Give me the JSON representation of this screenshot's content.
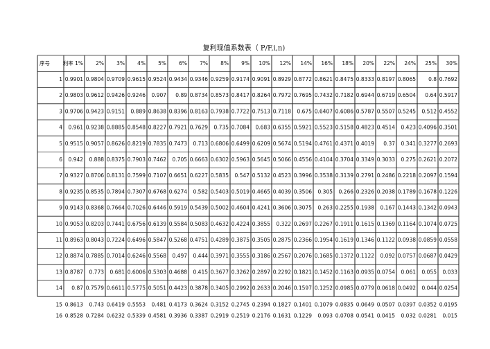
{
  "header": {
    "title": "复利现值系数表（ P/F,i,n)"
  },
  "table": {
    "columns": [
      "序号",
      "利率 1%",
      "2%",
      "3%",
      "4%",
      "5%",
      "6%",
      "7%",
      "8%",
      "9%",
      "10%",
      "12%",
      "14%",
      "16%",
      "18%",
      "20%",
      "22%",
      "24%",
      "25%",
      "30%"
    ],
    "rows": [
      [
        "1",
        "0.9901",
        "0.9804",
        "0.9709",
        "0.9615",
        "0.9524",
        "0.9434",
        "0.9346",
        "0.9259",
        "0.9174",
        "0.9091",
        "0.8929",
        "0.8772",
        "0.8621",
        "0.8475",
        "0.8333",
        "0.8197",
        "0.8065",
        "0.8",
        "0.7692"
      ],
      [
        "2",
        "0.9803",
        "0.9612",
        "0.9426",
        "0.9246",
        "0.907",
        "0.89",
        "0.8734",
        "0.8573",
        "0.8417",
        "0.8264",
        "0.7972",
        "0.7695",
        "0.7432",
        "0.7182",
        "0.6944",
        "0.6719",
        "0.6504",
        "0.64",
        "0.5917"
      ],
      [
        "3",
        "0.9706",
        "0.9423",
        "0.9151",
        "0.889",
        "0.8638",
        "0.8396",
        "0.8163",
        "0.7938",
        "0.7722",
        "0.7513",
        "0.7118",
        "0.675",
        "0.6407",
        "0.6086",
        "0.5787",
        "0.5507",
        "0.5245",
        "0.512",
        "0.4552"
      ],
      [
        "4",
        "0.961",
        "0.9238",
        "0.8885",
        "0.8548",
        "0.8227",
        "0.7921",
        "0.7629",
        "0.735",
        "0.7084",
        "0.683",
        "0.6355",
        "0.5921",
        "0.5523",
        "0.5158",
        "0.4823",
        "0.4514",
        "0.423",
        "0.4096",
        "0.3501"
      ],
      [
        "5",
        "0.9515",
        "0.9057",
        "0.8626",
        "0.8219",
        "0.7835",
        "0.7473",
        "0.713",
        "0.6806",
        "0.6499",
        "0.6209",
        "0.5674",
        "0.5194",
        "0.4761",
        "0.4371",
        "0.4019",
        "0.37",
        "0.341",
        "0.3277",
        "0.2693"
      ],
      [
        "6",
        "0.942",
        "0.888",
        "0.8375",
        "0.7903",
        "0.7462",
        "0.705",
        "0.6663",
        "0.6302",
        "0.5963",
        "0.5645",
        "0.5066",
        "0.4556",
        "0.4104",
        "0.3704",
        "0.3349",
        "0.3033",
        "0.275",
        "0.2621",
        "0.2072"
      ],
      [
        "7",
        "0.9327",
        "0.8706",
        "0.8131",
        "0.7599",
        "0.7107",
        "0.6651",
        "0.6227",
        "0.5835",
        "0.547",
        "0.5132",
        "0.4523",
        "0.3996",
        "0.3538",
        "0.3139",
        "0.2791",
        "0.2486",
        "0.2218",
        "0.2097",
        "0.1594"
      ],
      [
        "8",
        "0.9235",
        "0.8535",
        "0.7894",
        "0.7307",
        "0.6768",
        "0.6274",
        "0.582",
        "0.5403",
        "0.5019",
        "0.4665",
        "0.4039",
        "0.3506",
        "0.305",
        "0.266",
        "0.2326",
        "0.2038",
        "0.1789",
        "0.1678",
        "0.1226"
      ],
      [
        "9",
        "0.9143",
        "0.8368",
        "0.7664",
        "0.7026",
        "0.6446",
        "0.5919",
        "0.5439",
        "0.5002",
        "0.4604",
        "0.4241",
        "0.3606",
        "0.3075",
        "0.263",
        "0.2255",
        "0.1938",
        "0.167",
        "0.1443",
        "0.1342",
        "0.0943"
      ],
      [
        "10",
        "0.9053",
        "0.8203",
        "0.7441",
        "0.6756",
        "0.6139",
        "0.5584",
        "0.5083",
        "0.4632",
        "0.4224",
        "0.3855",
        "0.322",
        "0.2697",
        "0.2267",
        "0.1911",
        "0.1615",
        "0.1369",
        "0.1164",
        "0.1074",
        "0.0725"
      ],
      [
        "11",
        "0.8963",
        "0.8043",
        "0.7224",
        "0.6496",
        "0.5847",
        "0.5268",
        "0.4751",
        "0.4289",
        "0.3875",
        "0.3505",
        "0.2875",
        "0.2366",
        "0.1954",
        "0.1619",
        "0.1346",
        "0.1122",
        "0.0938",
        "0.0859",
        "0.0558"
      ],
      [
        "12",
        "0.8874",
        "0.7885",
        "0.7014",
        "0.6246",
        "0.5568",
        "0.497",
        "0.444",
        "0.3971",
        "0.3555",
        "0.3186",
        "0.2567",
        "0.2076",
        "0.1685",
        "0.1372",
        "0.1122",
        "0.092",
        "0.0757",
        "0.0687",
        "0.0429"
      ],
      [
        "13",
        "0.8787",
        "0.773",
        "0.681",
        "0.6006",
        "0.5303",
        "0.4688",
        "0.415",
        "0.3677",
        "0.3262",
        "0.2897",
        "0.2292",
        "0.1821",
        "0.1452",
        "0.1163",
        "0.0935",
        "0.0754",
        "0.061",
        "0.055",
        "0.033"
      ],
      [
        "14",
        "0.87",
        "0.7579",
        "0.6611",
        "0.5775",
        "0.5051",
        "0.4423",
        "0.3878",
        "0.3405",
        "0.2992",
        "0.2633",
        "0.2046",
        "0.1597",
        "0.1252",
        "0.0985",
        "0.0779",
        "0.0618",
        "0.0492",
        "0.044",
        "0.0254"
      ],
      [
        "15",
        "0.8613",
        "0.743",
        "0.6419",
        "0.5553",
        "0.481",
        "0.4173",
        "0.3624",
        "0.3152",
        "0.2745",
        "0.2394",
        "0.1827",
        "0.1401",
        "0.1079",
        "0.0835",
        "0.0649",
        "0.0507",
        "0.0397",
        "0.0352",
        "0.0195"
      ],
      [
        "16",
        "0.8528",
        "0.7284",
        "0.6232",
        "0.5339",
        "0.4581",
        "0.3936",
        "0.3387",
        "0.2919",
        "0.2519",
        "0.2176",
        "0.1631",
        "0.1229",
        "0.093",
        "0.0708",
        "0.0541",
        "0.0415",
        "0.032",
        "0.0281",
        "0.015"
      ]
    ]
  }
}
